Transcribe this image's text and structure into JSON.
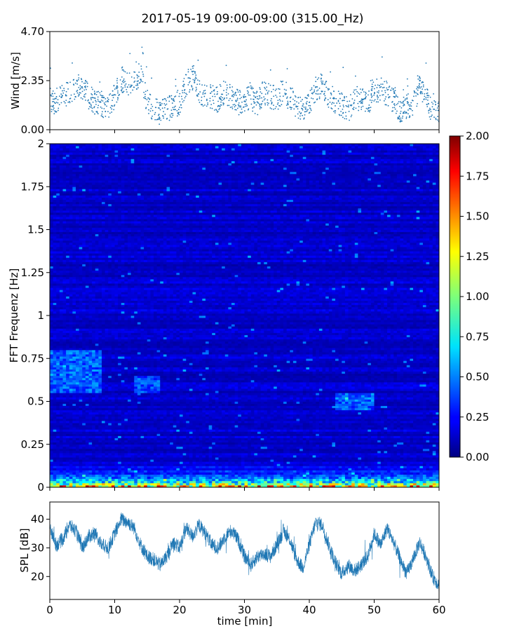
{
  "title": "2017-05-19 09:00-09:00 (315.00_Hz)",
  "chart_data": [
    {
      "id": "wind",
      "type": "scatter",
      "ylabel": "Wind [m/s]",
      "xlim": [
        0,
        60
      ],
      "ylim": [
        0.0,
        4.7
      ],
      "yticks": [
        "0.00",
        "2.35",
        "4.70"
      ],
      "color": "#1f77b4",
      "series": [
        {
          "x": [
            0,
            1,
            2,
            3,
            4,
            5,
            6,
            7,
            8,
            9,
            10,
            11,
            12,
            13,
            14,
            15,
            16,
            17,
            18,
            19,
            20,
            21,
            22,
            23,
            24,
            25,
            26,
            27,
            28,
            29,
            30,
            31,
            32,
            33,
            34,
            35,
            36,
            37,
            38,
            39,
            40,
            41,
            42,
            43,
            44,
            45,
            46,
            47,
            48,
            49,
            50,
            51,
            52,
            53,
            54,
            55,
            56,
            57,
            58,
            59,
            60
          ],
          "y": [
            1.5,
            1.3,
            1.6,
            1.8,
            2.1,
            2.0,
            1.6,
            1.3,
            1.2,
            1.0,
            1.6,
            2.4,
            2.1,
            2.3,
            2.8,
            1.3,
            1.0,
            0.8,
            1.0,
            1.1,
            1.3,
            2.2,
            2.5,
            1.8,
            1.5,
            1.6,
            1.4,
            1.8,
            1.6,
            1.3,
            1.4,
            1.5,
            1.3,
            1.8,
            1.6,
            1.5,
            1.9,
            1.5,
            1.2,
            1.0,
            1.3,
            2.0,
            2.1,
            1.6,
            1.4,
            1.2,
            0.9,
            1.6,
            1.4,
            1.2,
            1.8,
            1.9,
            1.7,
            1.4,
            0.9,
            1.1,
            1.3,
            2.0,
            1.5,
            0.9,
            0.8
          ]
        }
      ]
    },
    {
      "id": "spectrogram",
      "type": "heatmap",
      "ylabel": "FFT Frequenz [Hz]",
      "xlim": [
        0,
        60
      ],
      "ylim": [
        0,
        2
      ],
      "yticks": [
        "0",
        "0.25",
        "0.5",
        "0.75",
        "1",
        "1.25",
        "1.5",
        "1.75",
        "2"
      ],
      "colormap": "jet",
      "colorbar": {
        "range": [
          0.0,
          2.0
        ],
        "ticks": [
          "0.00",
          "0.25",
          "0.50",
          "0.75",
          "1.00",
          "1.25",
          "1.50",
          "1.75",
          "2.00"
        ]
      },
      "background_level": 0.15,
      "low_frequency_level": 1.6,
      "highlights": [
        {
          "t": [
            0,
            8
          ],
          "f": [
            0.55,
            0.8
          ],
          "level": 0.55
        },
        {
          "t": [
            13,
            17
          ],
          "f": [
            0.55,
            0.65
          ],
          "level": 0.5
        },
        {
          "t": [
            44,
            50
          ],
          "f": [
            0.45,
            0.55
          ],
          "level": 0.55
        }
      ]
    },
    {
      "id": "spl",
      "type": "line",
      "ylabel": "SPL [dB]",
      "xlabel": "time [min]",
      "xlim": [
        0,
        60
      ],
      "ylim": [
        12,
        46
      ],
      "xticks": [
        "0",
        "10",
        "20",
        "30",
        "40",
        "50",
        "60"
      ],
      "yticks": [
        "20",
        "30",
        "40"
      ],
      "color": "#1f77b4",
      "series": [
        {
          "x": [
            0,
            1,
            2,
            3,
            4,
            5,
            6,
            7,
            8,
            9,
            10,
            11,
            12,
            13,
            14,
            15,
            16,
            17,
            18,
            19,
            20,
            21,
            22,
            23,
            24,
            25,
            26,
            27,
            28,
            29,
            30,
            31,
            32,
            33,
            34,
            35,
            36,
            37,
            38,
            39,
            40,
            41,
            42,
            43,
            44,
            45,
            46,
            47,
            48,
            49,
            50,
            51,
            52,
            53,
            54,
            55,
            56,
            57,
            58,
            59,
            60
          ],
          "y": [
            37,
            31,
            33,
            38,
            36,
            30,
            34,
            35,
            31,
            30,
            35,
            40,
            39,
            37,
            31,
            27,
            26,
            24,
            27,
            32,
            30,
            37,
            34,
            38,
            35,
            31,
            30,
            34,
            36,
            33,
            27,
            24,
            27,
            28,
            27,
            31,
            36,
            33,
            26,
            23,
            31,
            39,
            38,
            31,
            25,
            21,
            24,
            22,
            24,
            27,
            35,
            31,
            37,
            32,
            26,
            21,
            26,
            32,
            27,
            20,
            17
          ]
        }
      ]
    }
  ]
}
